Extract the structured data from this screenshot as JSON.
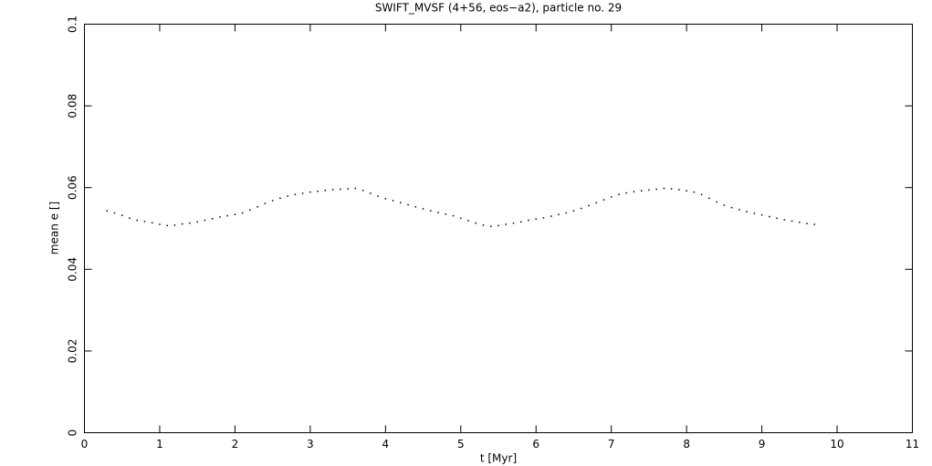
{
  "chart_data": {
    "type": "scatter",
    "title": "SWIFT_MVSF (4+56, eos−a2), particle no. 29",
    "xlabel": "t [Myr]",
    "ylabel": "mean e []",
    "color": "#000000",
    "xlim": [
      0,
      11
    ],
    "ylim": [
      0,
      0.1
    ],
    "xticks": [
      0,
      1,
      2,
      3,
      4,
      5,
      6,
      7,
      8,
      9,
      10,
      11
    ],
    "yticks": [
      0,
      0.02,
      0.04,
      0.06,
      0.08,
      0.1
    ],
    "x": [
      0.3,
      0.4,
      0.5,
      0.6,
      0.7,
      0.8,
      0.9,
      1.0,
      1.1,
      1.2,
      1.3,
      1.4,
      1.5,
      1.6,
      1.7,
      1.8,
      1.9,
      2.0,
      2.1,
      2.2,
      2.3,
      2.4,
      2.5,
      2.6,
      2.7,
      2.8,
      2.9,
      3.0,
      3.1,
      3.2,
      3.3,
      3.4,
      3.5,
      3.6,
      3.7,
      3.8,
      3.9,
      4.0,
      4.1,
      4.2,
      4.3,
      4.4,
      4.5,
      4.6,
      4.7,
      4.8,
      4.9,
      5.0,
      5.1,
      5.2,
      5.3,
      5.4,
      5.5,
      5.6,
      5.7,
      5.8,
      5.9,
      6.0,
      6.1,
      6.2,
      6.3,
      6.4,
      6.5,
      6.6,
      6.7,
      6.8,
      6.9,
      7.0,
      7.1,
      7.2,
      7.3,
      7.4,
      7.5,
      7.6,
      7.7,
      7.8,
      7.9,
      8.0,
      8.1,
      8.2,
      8.3,
      8.4,
      8.5,
      8.6,
      8.7,
      8.8,
      8.9,
      9.0,
      9.1,
      9.2,
      9.3,
      9.4,
      9.5,
      9.6,
      9.7
    ],
    "values": [
      0.0543,
      0.0538,
      0.0532,
      0.0525,
      0.052,
      0.0517,
      0.0514,
      0.051,
      0.0507,
      0.0508,
      0.0511,
      0.0513,
      0.0516,
      0.052,
      0.0524,
      0.0528,
      0.0531,
      0.0534,
      0.0538,
      0.0545,
      0.0553,
      0.0561,
      0.0568,
      0.0574,
      0.0579,
      0.0583,
      0.0586,
      0.0589,
      0.0591,
      0.0593,
      0.0595,
      0.0596,
      0.0597,
      0.0598,
      0.0593,
      0.0586,
      0.0579,
      0.0573,
      0.0568,
      0.0563,
      0.0558,
      0.0553,
      0.0548,
      0.0543,
      0.0539,
      0.0535,
      0.0531,
      0.0525,
      0.0519,
      0.0513,
      0.0508,
      0.0505,
      0.0507,
      0.051,
      0.0513,
      0.0516,
      0.052,
      0.0523,
      0.0526,
      0.053,
      0.0534,
      0.0538,
      0.0543,
      0.0549,
      0.0556,
      0.0563,
      0.057,
      0.0577,
      0.0583,
      0.0587,
      0.059,
      0.0592,
      0.0594,
      0.0596,
      0.0598,
      0.0597,
      0.0595,
      0.0592,
      0.0589,
      0.0583,
      0.0574,
      0.0565,
      0.0557,
      0.0551,
      0.0546,
      0.0541,
      0.0537,
      0.0533,
      0.0529,
      0.0525,
      0.0521,
      0.0518,
      0.0515,
      0.0512,
      0.051
    ]
  }
}
